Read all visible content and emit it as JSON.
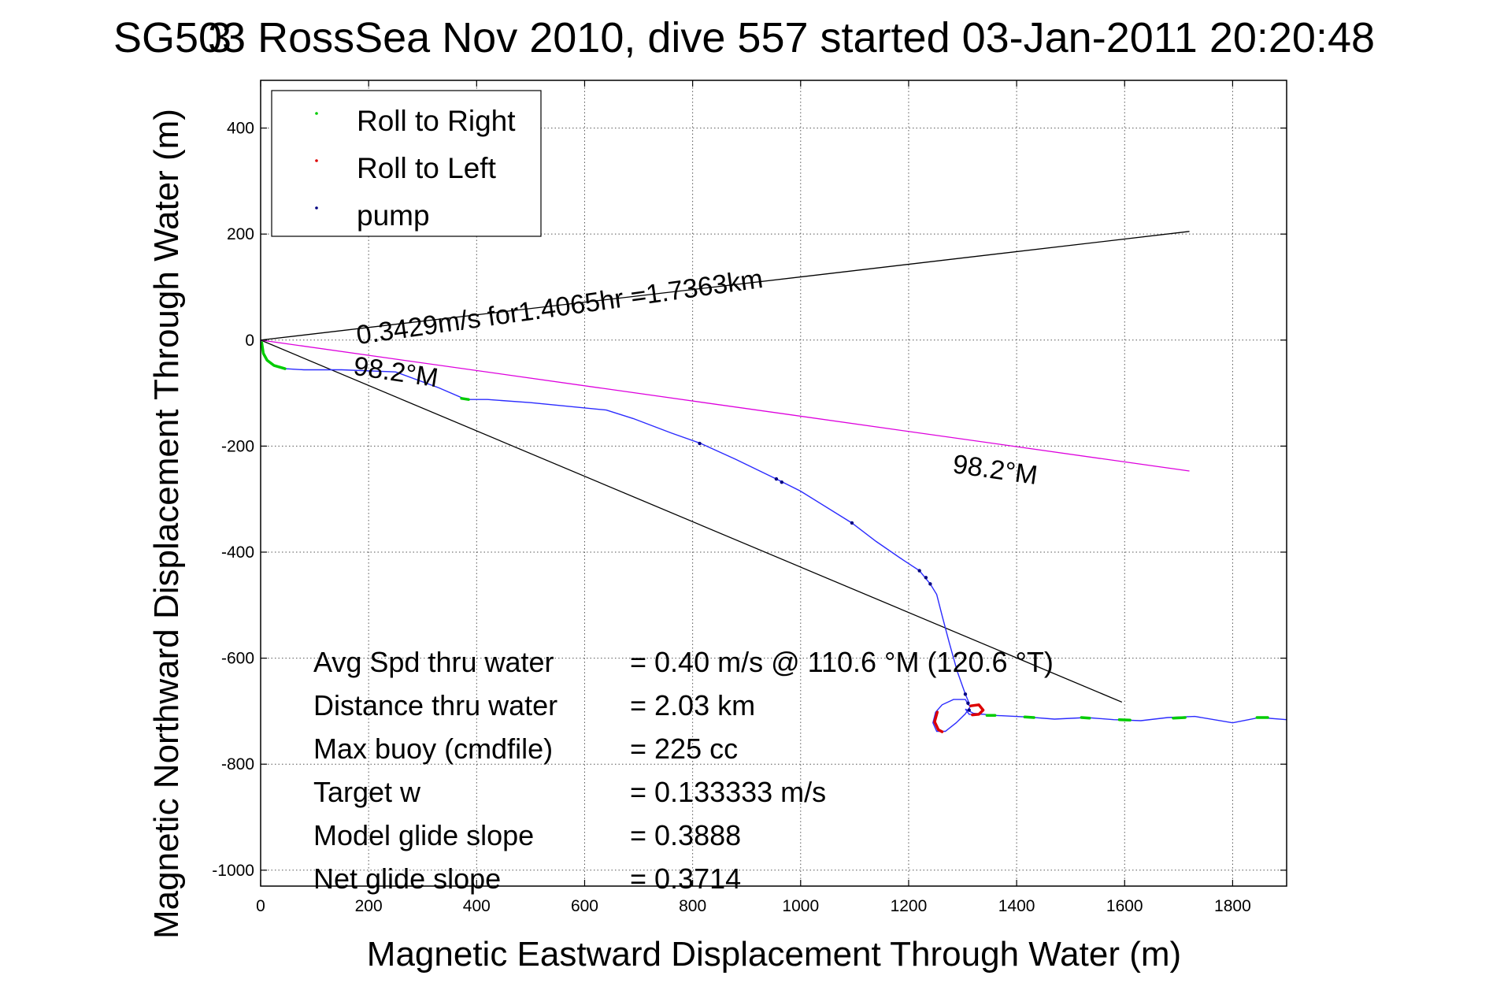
{
  "chart_data": {
    "type": "line",
    "title": "SG503 RossSea Nov 2010, dive 557 started 03-Jan-2011 20:20:48",
    "title_overlap_char": "3",
    "xlabel": "Magnetic Eastward Displacement Through Water (m)",
    "ylabel": "Magnetic Northward Displacement Through Water (m)",
    "xlim": [
      0,
      1900
    ],
    "ylim": [
      -1030,
      490
    ],
    "xticks": [
      0,
      200,
      400,
      600,
      800,
      1000,
      1200,
      1400,
      1600,
      1800
    ],
    "yticks": [
      -1000,
      -800,
      -600,
      -400,
      -200,
      0,
      200,
      400
    ],
    "grid": true,
    "legend": {
      "position": "top-left",
      "entries": [
        {
          "label": "Roll to Right",
          "color": "#00cc00"
        },
        {
          "label": "Roll to Left",
          "color": "#dd0000"
        },
        {
          "label": "pump",
          "color": "#000080"
        }
      ]
    },
    "colors": {
      "track": "#2b2bff",
      "magenta": "#dd00dd",
      "lines": "#000000",
      "roll_right": "#00cc00",
      "roll_left": "#dd0000",
      "pump": "#000080"
    },
    "track": [
      [
        0,
        0
      ],
      [
        3,
        -20
      ],
      [
        10,
        -35
      ],
      [
        25,
        -47
      ],
      [
        45,
        -54
      ],
      [
        80,
        -56
      ],
      [
        150,
        -56
      ],
      [
        250,
        -60
      ],
      [
        330,
        -90
      ],
      [
        380,
        -112
      ],
      [
        420,
        -112
      ],
      [
        500,
        -118
      ],
      [
        640,
        -132
      ],
      [
        690,
        -148
      ],
      [
        760,
        -175
      ],
      [
        815,
        -195
      ],
      [
        880,
        -225
      ],
      [
        955,
        -262
      ],
      [
        1000,
        -285
      ],
      [
        1095,
        -345
      ],
      [
        1140,
        -380
      ],
      [
        1190,
        -415
      ],
      [
        1220,
        -435
      ],
      [
        1240,
        -460
      ],
      [
        1252,
        -480
      ],
      [
        1262,
        -520
      ],
      [
        1275,
        -570
      ],
      [
        1290,
        -625
      ],
      [
        1305,
        -668
      ],
      [
        1310,
        -680
      ],
      [
        1312,
        -690
      ],
      [
        1305,
        -678
      ],
      [
        1283,
        -678
      ],
      [
        1262,
        -688
      ],
      [
        1250,
        -702
      ],
      [
        1245,
        -722
      ],
      [
        1252,
        -738
      ],
      [
        1268,
        -738
      ],
      [
        1288,
        -722
      ],
      [
        1305,
        -705
      ],
      [
        1315,
        -690
      ],
      [
        1330,
        -688
      ],
      [
        1338,
        -698
      ],
      [
        1330,
        -706
      ],
      [
        1312,
        -706
      ],
      [
        1305,
        -696
      ],
      [
        1320,
        -704
      ],
      [
        1360,
        -708
      ],
      [
        1420,
        -711
      ],
      [
        1470,
        -715
      ],
      [
        1530,
        -712
      ],
      [
        1580,
        -716
      ],
      [
        1630,
        -718
      ],
      [
        1680,
        -712
      ],
      [
        1730,
        -710
      ],
      [
        1800,
        -722
      ],
      [
        1850,
        -712
      ],
      [
        1900,
        -716
      ]
    ],
    "roll_right_segments": [
      [
        [
          2,
          -5
        ],
        [
          5,
          -25
        ],
        [
          12,
          -38
        ],
        [
          25,
          -48
        ],
        [
          45,
          -54
        ]
      ],
      [
        [
          372,
          -110
        ],
        [
          385,
          -112
        ]
      ],
      [
        [
          1345,
          -708
        ],
        [
          1360,
          -708
        ]
      ],
      [
        [
          1415,
          -711
        ],
        [
          1432,
          -712
        ]
      ],
      [
        [
          1520,
          -712
        ],
        [
          1535,
          -713
        ]
      ],
      [
        [
          1590,
          -716
        ],
        [
          1610,
          -717
        ]
      ],
      [
        [
          1690,
          -713
        ],
        [
          1712,
          -712
        ]
      ],
      [
        [
          1845,
          -712
        ],
        [
          1865,
          -712
        ]
      ]
    ],
    "roll_left_segments": [
      [
        [
          1253,
          -702
        ],
        [
          1248,
          -720
        ],
        [
          1255,
          -735
        ],
        [
          1262,
          -739
        ]
      ],
      [
        [
          1315,
          -690
        ],
        [
          1330,
          -688
        ],
        [
          1338,
          -698
        ],
        [
          1330,
          -706
        ],
        [
          1318,
          -707
        ]
      ]
    ],
    "pump_points": [
      [
        813,
        -195
      ],
      [
        955,
        -262
      ],
      [
        965,
        -268
      ],
      [
        1095,
        -345
      ],
      [
        1220,
        -435
      ],
      [
        1232,
        -448
      ],
      [
        1240,
        -460
      ],
      [
        1305,
        -668
      ],
      [
        1310,
        -685
      ],
      [
        1312,
        -698
      ]
    ],
    "lines": [
      {
        "color": "#000000",
        "from": [
          0,
          0
        ],
        "to": [
          1720,
          205
        ]
      },
      {
        "color": "#000000",
        "from": [
          0,
          0
        ],
        "to": [
          1595,
          -683
        ]
      },
      {
        "color": "#dd00dd",
        "from": [
          0,
          0
        ],
        "to": [
          1720,
          -247
        ]
      }
    ],
    "annotations": [
      {
        "text": "0.3429m/s for1.4065hr =1.7363km",
        "at": [
          180,
          -8
        ],
        "rotate": -8
      },
      {
        "text": "98.2°M",
        "at": [
          170,
          -65
        ],
        "rotate": 8.5
      },
      {
        "text": "98.2°M",
        "at": [
          1280,
          -250
        ],
        "rotate": 8
      }
    ],
    "stats": [
      {
        "label": "Avg Spd thru water",
        "value": "=  0.40 m/s @ 110.6 °M (120.6 °T)"
      },
      {
        "label": "Distance thru water",
        "value": "=  2.03 km"
      },
      {
        "label": "Max buoy (cmdfile)",
        "value": "= 225 cc"
      },
      {
        "label": "Target w",
        "value": "= 0.133333 m/s"
      },
      {
        "label": "Model glide slope",
        "value": "= 0.3888"
      },
      {
        "label": "Net glide slope",
        "value": "= 0.3714"
      }
    ]
  }
}
